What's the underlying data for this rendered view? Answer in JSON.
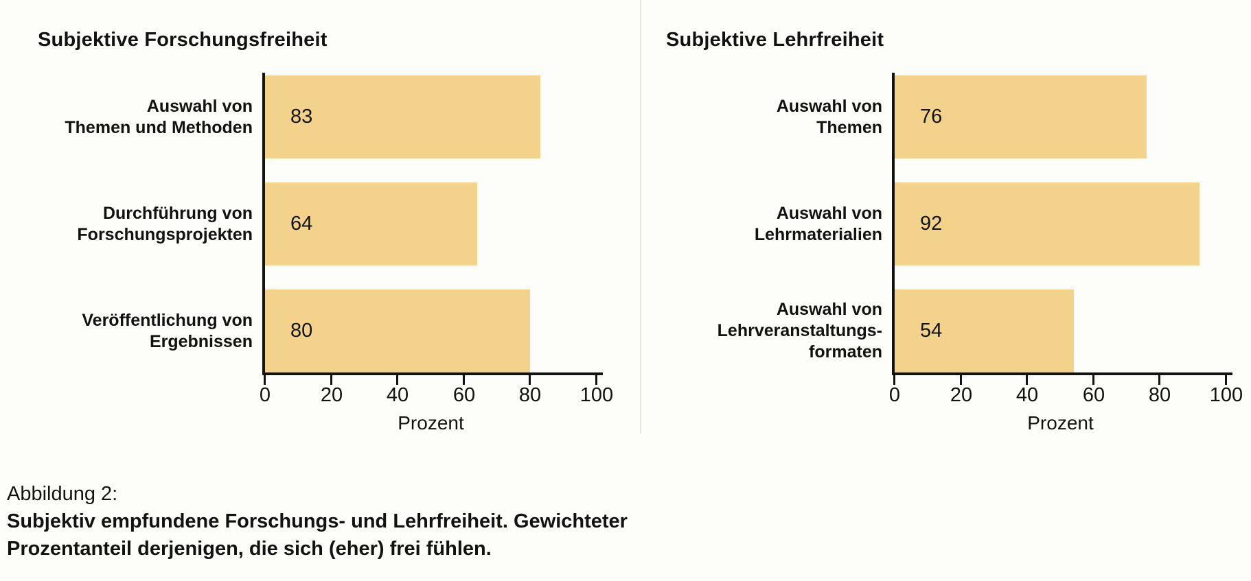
{
  "figure": {
    "background_color": "#FDFDF9",
    "bar_color": "#F3D28C",
    "axis_color": "#121212",
    "text_color": "#121212",
    "divider_color": "#EAE4DF"
  },
  "chart_data": [
    {
      "type": "bar",
      "orientation": "horizontal",
      "title": "Subjektive Forschungsfreiheit",
      "categories": [
        "Auswahl von\nThemen und Methoden",
        "Durchführung von\nForschungsprojekten",
        "Veröffentlichung von\nErgebnissen"
      ],
      "values": [
        83,
        64,
        80
      ],
      "value_label_position": "inside-start",
      "xlabel": "Prozent",
      "xlim": [
        0,
        100
      ],
      "xticks": [
        0,
        20,
        40,
        60,
        80,
        100
      ],
      "grid": false,
      "legend": false
    },
    {
      "type": "bar",
      "orientation": "horizontal",
      "title": "Subjektive Lehrfreiheit",
      "categories": [
        "Auswahl von\nThemen",
        "Auswahl von\nLehrmaterialien",
        "Auswahl von\nLehrveranstaltungs-\nformaten"
      ],
      "values": [
        76,
        92,
        54
      ],
      "value_label_position": "inside-start",
      "xlabel": "Prozent",
      "xlim": [
        0,
        100
      ],
      "xticks": [
        0,
        20,
        40,
        60,
        80,
        100
      ],
      "grid": false,
      "legend": false
    }
  ],
  "caption": {
    "label": "Abbildung 2:",
    "line1": "Subjektiv empfundene Forschungs- und Lehrfreiheit. Gewichteter",
    "line2": "Prozentanteil derjenigen, die sich (eher) frei fühlen."
  }
}
